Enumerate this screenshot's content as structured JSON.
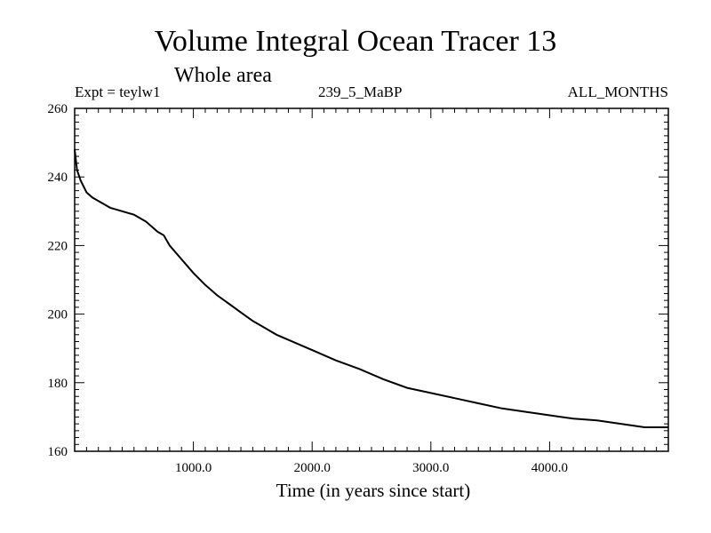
{
  "chart_data": {
    "type": "line",
    "title": "Volume Integral Ocean Tracer 13",
    "subtitle": "Whole area",
    "expt_label": "Expt = teylw1",
    "run_label": "239_5_MaBP",
    "months_label": "ALL_MONTHS",
    "xlabel": "Time (in years since start)",
    "ylabel": "",
    "xlim": [
      0,
      5000
    ],
    "ylim": [
      160,
      260
    ],
    "x_ticks": [
      1000,
      2000,
      3000,
      4000
    ],
    "x_tick_labels": [
      "1000.0",
      "2000.0",
      "3000.0",
      "4000.0"
    ],
    "y_ticks": [
      160,
      180,
      200,
      220,
      240,
      260
    ],
    "y_tick_labels": [
      "160",
      "180",
      "200",
      "220",
      "240",
      "260"
    ],
    "series": [
      {
        "name": "Volume Integral Ocean Tracer 13",
        "x": [
          0,
          20,
          50,
          100,
          150,
          200,
          300,
          400,
          500,
          600,
          700,
          750,
          800,
          900,
          1000,
          1100,
          1200,
          1300,
          1400,
          1500,
          1600,
          1700,
          1800,
          1900,
          2000,
          2200,
          2400,
          2600,
          2800,
          3000,
          3200,
          3400,
          3600,
          3800,
          4000,
          4200,
          4400,
          4600,
          4800,
          5000
        ],
        "y": [
          248,
          242,
          239,
          235.5,
          234,
          233,
          231,
          230,
          229,
          227,
          224,
          223,
          220,
          216,
          212,
          208.5,
          205.5,
          203,
          200.5,
          198,
          196,
          194,
          192.5,
          191,
          189.5,
          186.5,
          184,
          181,
          178.5,
          177,
          175.5,
          174,
          172.5,
          171.5,
          170.5,
          169.5,
          169,
          168,
          167,
          167
        ]
      }
    ]
  },
  "colors": {
    "line": "#000000",
    "axis": "#000000",
    "background": "#ffffff"
  }
}
